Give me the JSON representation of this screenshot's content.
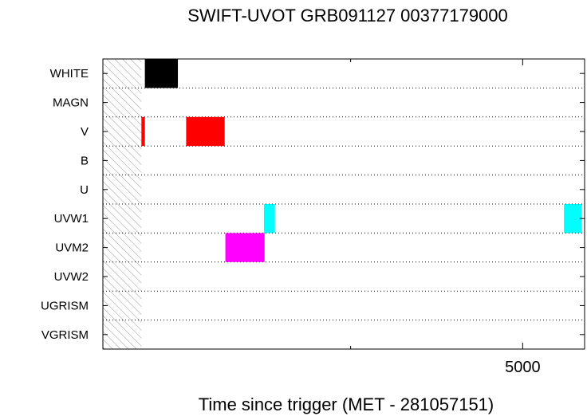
{
  "chart_data": {
    "type": "bar",
    "title": "SWIFT-UVOT GRB091127 00377179000",
    "xlabel": "Time since trigger (MET - 281057151)",
    "ylabel": "",
    "xlim": [
      -1100,
      5900
    ],
    "rows": [
      "WHITE",
      "MAGN",
      "V",
      "B",
      "U",
      "UVW1",
      "UVM2",
      "UVW2",
      "UGRISM",
      "VGRISM"
    ],
    "x_major_ticks": [
      5000
    ],
    "x_minor_ticks": [
      2500,
      7500
    ],
    "tick_labels": [
      "5000"
    ],
    "hatched_region": [
      -1100,
      -540
    ],
    "exposures": [
      {
        "filter": "WHITE",
        "start": -490,
        "end": -10,
        "color": "#000000"
      },
      {
        "filter": "V",
        "start": -540,
        "end": -490,
        "color": "#ff0000"
      },
      {
        "filter": "V",
        "start": 110,
        "end": 670,
        "color": "#ff0000"
      },
      {
        "filter": "UVM2",
        "start": 680,
        "end": 1250,
        "color": "#ff00ff"
      },
      {
        "filter": "UVW1",
        "start": 1240,
        "end": 1400,
        "color": "#00ffff"
      },
      {
        "filter": "UVW1",
        "start": 5600,
        "end": 5860,
        "color": "#00ffff"
      }
    ]
  }
}
